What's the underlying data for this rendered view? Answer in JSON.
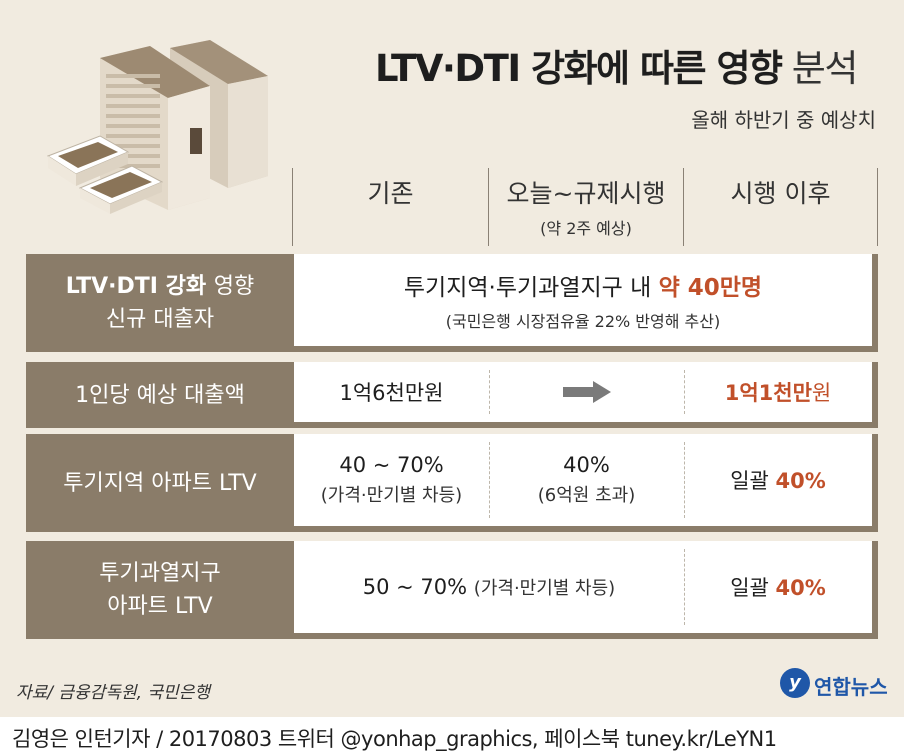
{
  "header": {
    "title_bold": "LTV·DTI 강화에 따른 영향",
    "title_light": "분석",
    "subtitle": "올해 하반기 중 예상치"
  },
  "columns": {
    "col1": "기존",
    "col2": "오늘~규제시행",
    "col2_note": "(약 2주 예상)",
    "col3": "시행 이후"
  },
  "rows": {
    "borrowers": {
      "label_bold": "LTV·DTI 강화",
      "label_thin": "영향",
      "label_line2": "신규 대출자",
      "text_main": "투기지역·투기과열지구 내",
      "text_highlight": "약 40만명",
      "note": "(국민은행 시장점유율 22% 반영해 추산)"
    },
    "loan": {
      "label": "1인당 예상 대출액",
      "before": "1억6천만원",
      "after_bold": "1억1천만",
      "after_unit": "원"
    },
    "speculative_ltv": {
      "label": "투기지역 아파트 LTV",
      "before_main": "40 ~ 70%",
      "before_note": "(가격·만기별 차등)",
      "transition_main": "40%",
      "transition_note": "(6억원 초과)",
      "after_prefix": "일괄",
      "after_value": "40%"
    },
    "overheated_ltv": {
      "label_line1": "투기과열지구",
      "label_line2": "아파트 LTV",
      "range_main": "50 ~ 70%",
      "range_note": "(가격·만기별 차등)",
      "after_prefix": "일괄",
      "after_value": "40%"
    }
  },
  "footer": {
    "source": "자료/ 금융감독원, 국민은행",
    "logo_text": "연합뉴스",
    "credit": "김영은 인턴기자 / 20170803 트위터 @yonhap_graphics, 페이스북 tuney.kr/LeYN1"
  },
  "colors": {
    "background": "#f1ebe0",
    "row_label": "#8a7c69",
    "highlight": "#c1502a",
    "logo": "#1f57a8"
  }
}
